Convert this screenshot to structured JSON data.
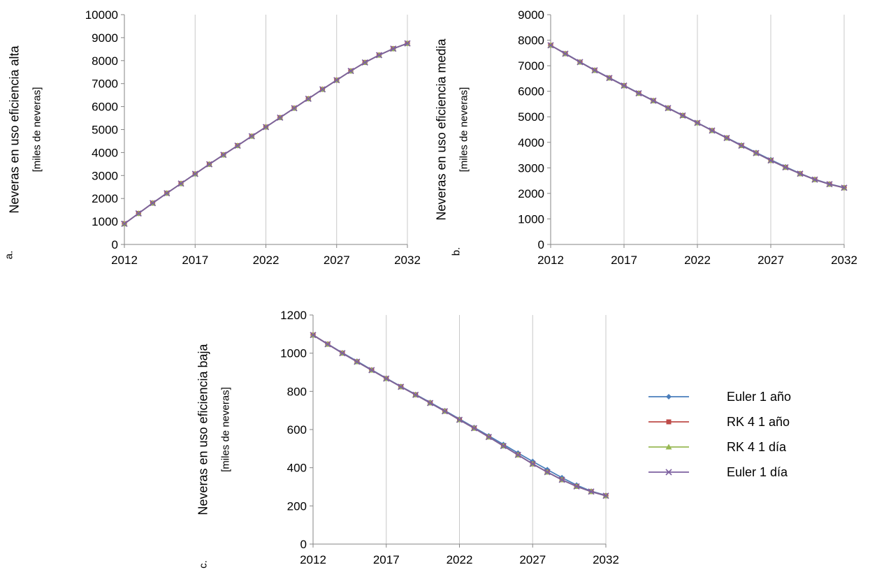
{
  "chart_data": [
    {
      "panel": "a.",
      "type": "line",
      "ylabel": "Neveras en uso eficiencia alta",
      "ylabel2": "[miles de neveras]",
      "xlim": [
        2012,
        2032
      ],
      "ylim": [
        0,
        10000
      ],
      "xticks": [
        2012,
        2017,
        2022,
        2027,
        2032
      ],
      "yticks": [
        0,
        1000,
        2000,
        3000,
        4000,
        5000,
        6000,
        7000,
        8000,
        9000,
        10000
      ],
      "grid": "vertical",
      "x": [
        2012,
        2013,
        2014,
        2015,
        2016,
        2017,
        2018,
        2019,
        2020,
        2021,
        2022,
        2023,
        2024,
        2025,
        2026,
        2027,
        2028,
        2029,
        2030,
        2031,
        2032
      ],
      "series": [
        {
          "name": "Euler 1 año",
          "values": [
            900,
            1350,
            1800,
            2230,
            2650,
            3070,
            3490,
            3900,
            4300,
            4710,
            5110,
            5520,
            5930,
            6340,
            6750,
            7150,
            7550,
            7920,
            8240,
            8520,
            8750
          ]
        },
        {
          "name": "RK 4 1 año",
          "values": [
            900,
            1350,
            1800,
            2230,
            2650,
            3070,
            3490,
            3900,
            4300,
            4710,
            5110,
            5520,
            5930,
            6340,
            6750,
            7150,
            7550,
            7920,
            8240,
            8520,
            8750
          ]
        },
        {
          "name": "RK 4 1 día",
          "values": [
            900,
            1350,
            1800,
            2230,
            2650,
            3070,
            3490,
            3900,
            4300,
            4710,
            5110,
            5520,
            5930,
            6340,
            6750,
            7150,
            7550,
            7920,
            8240,
            8520,
            8750
          ]
        },
        {
          "name": "Euler 1 día",
          "values": [
            900,
            1350,
            1800,
            2230,
            2650,
            3070,
            3490,
            3900,
            4300,
            4710,
            5110,
            5520,
            5930,
            6340,
            6750,
            7150,
            7550,
            7920,
            8240,
            8520,
            8750
          ]
        }
      ]
    },
    {
      "panel": "b.",
      "type": "line",
      "ylabel": "Neveras en uso eficiencia media",
      "ylabel2": "[miles de neveras]",
      "xlim": [
        2012,
        2032
      ],
      "ylim": [
        0,
        9000
      ],
      "xticks": [
        2012,
        2017,
        2022,
        2027,
        2032
      ],
      "yticks": [
        0,
        1000,
        2000,
        3000,
        4000,
        5000,
        6000,
        7000,
        8000,
        9000
      ],
      "grid": "vertical",
      "x": [
        2012,
        2013,
        2014,
        2015,
        2016,
        2017,
        2018,
        2019,
        2020,
        2021,
        2022,
        2023,
        2024,
        2025,
        2026,
        2027,
        2028,
        2029,
        2030,
        2031,
        2032
      ],
      "series": [
        {
          "name": "Euler 1 año",
          "values": [
            7800,
            7480,
            7150,
            6830,
            6530,
            6230,
            5930,
            5640,
            5350,
            5060,
            4770,
            4470,
            4180,
            3890,
            3600,
            3320,
            3040,
            2780,
            2550,
            2370,
            2230
          ]
        },
        {
          "name": "RK 4 1 año",
          "values": [
            7800,
            7470,
            7140,
            6820,
            6520,
            6220,
            5920,
            5630,
            5340,
            5050,
            4760,
            4460,
            4170,
            3870,
            3580,
            3290,
            3020,
            2770,
            2540,
            2360,
            2220
          ]
        },
        {
          "name": "RK 4 1 día",
          "values": [
            7800,
            7470,
            7140,
            6820,
            6520,
            6220,
            5920,
            5630,
            5340,
            5050,
            4760,
            4460,
            4170,
            3870,
            3580,
            3290,
            3020,
            2770,
            2540,
            2360,
            2220
          ]
        },
        {
          "name": "Euler 1 día",
          "values": [
            7800,
            7470,
            7140,
            6820,
            6520,
            6220,
            5920,
            5630,
            5340,
            5050,
            4760,
            4460,
            4170,
            3870,
            3580,
            3290,
            3020,
            2770,
            2540,
            2360,
            2220
          ]
        }
      ]
    },
    {
      "panel": "c.",
      "type": "line",
      "ylabel": "Neveras en uso eficiencia baja",
      "ylabel2": "[miles de neveras]",
      "xlim": [
        2012,
        2032
      ],
      "ylim": [
        0,
        1200
      ],
      "xticks": [
        2012,
        2017,
        2022,
        2027,
        2032
      ],
      "yticks": [
        0,
        200,
        400,
        600,
        800,
        1000,
        1200
      ],
      "grid": "vertical",
      "x": [
        2012,
        2013,
        2014,
        2015,
        2016,
        2017,
        2018,
        2019,
        2020,
        2021,
        2022,
        2023,
        2024,
        2025,
        2026,
        2027,
        2028,
        2029,
        2030,
        2031,
        2032
      ],
      "series": [
        {
          "name": "Euler 1 año",
          "values": [
            1095,
            1048,
            1002,
            958,
            913,
            869,
            826,
            784,
            742,
            699,
            655,
            611,
            567,
            522,
            477,
            433,
            390,
            348,
            309,
            277,
            255
          ]
        },
        {
          "name": "RK 4 1 año",
          "values": [
            1095,
            1047,
            1000,
            955,
            911,
            867,
            824,
            782,
            739,
            696,
            651,
            607,
            561,
            514,
            467,
            420,
            377,
            337,
            302,
            275,
            253
          ]
        },
        {
          "name": "RK 4 1 día",
          "values": [
            1095,
            1047,
            1000,
            955,
            911,
            867,
            824,
            782,
            739,
            696,
            651,
            607,
            561,
            514,
            467,
            420,
            377,
            337,
            302,
            275,
            253
          ]
        },
        {
          "name": "Euler 1 día",
          "values": [
            1095,
            1047,
            1000,
            955,
            911,
            867,
            824,
            782,
            739,
            696,
            651,
            607,
            561,
            514,
            467,
            420,
            377,
            337,
            302,
            275,
            253
          ]
        }
      ]
    }
  ],
  "legend": {
    "placement": "right",
    "items": [
      {
        "label": "Euler 1 año",
        "color": "#4a7ebb",
        "marker": "diamond"
      },
      {
        "label": "RK 4 1 año",
        "color": "#be4b48",
        "marker": "square"
      },
      {
        "label": "RK 4 1 día",
        "color": "#98b954",
        "marker": "triangle"
      },
      {
        "label": "Euler 1 día",
        "color": "#7d60a0",
        "marker": "x"
      }
    ]
  },
  "colors": {
    "gridline": "#c8c8c8",
    "axis": "#868686"
  }
}
